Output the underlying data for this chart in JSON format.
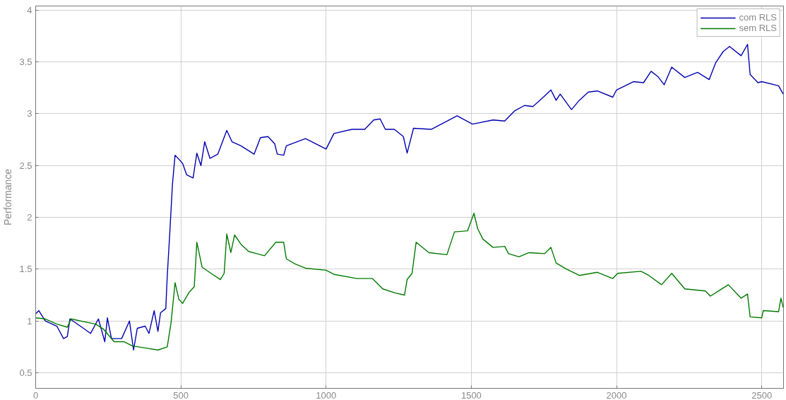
{
  "chart_data": {
    "type": "line",
    "ylabel": "Performance",
    "xlim": [
      0,
      2575
    ],
    "ylim": [
      0.35,
      4.04
    ],
    "xticks": [
      0,
      500,
      1000,
      1500,
      2000,
      2500
    ],
    "yticks": [
      0.5,
      1,
      1.5,
      2,
      2.5,
      3,
      3.5,
      4
    ],
    "grid": true,
    "legend": "top right",
    "marker": "none",
    "line_style": "solid",
    "series": [
      {
        "name": "com RLS",
        "color": "#0000b0",
        "x": [
          0,
          11,
          33,
          73,
          96,
          109,
          118,
          154,
          189,
          216,
          238,
          247,
          261,
          296,
          323,
          337,
          350,
          377,
          390,
          408,
          421,
          430,
          448,
          453,
          462,
          471,
          480,
          497,
          506,
          520,
          542,
          555,
          569,
          582,
          600,
          627,
          658,
          676,
          707,
          752,
          774,
          800,
          823,
          832,
          854,
          863,
          929,
          1000,
          1027,
          1089,
          1133,
          1164,
          1186,
          1204,
          1235,
          1266,
          1279,
          1301,
          1363,
          1451,
          1504,
          1575,
          1615,
          1650,
          1683,
          1712,
          1748,
          1774,
          1792,
          1806,
          1845,
          1872,
          1903,
          1934,
          1987,
          2000,
          2058,
          2093,
          2119,
          2142,
          2164,
          2190,
          2235,
          2279,
          2319,
          2341,
          2367,
          2389,
          2429,
          2451,
          2460,
          2487,
          2500,
          2558,
          2574
        ],
        "values": [
          1.07,
          1.1,
          1.0,
          0.95,
          0.83,
          0.85,
          1.02,
          0.95,
          0.88,
          1.02,
          0.8,
          1.03,
          0.83,
          0.83,
          1.0,
          0.72,
          0.93,
          0.95,
          0.88,
          1.1,
          0.9,
          1.08,
          1.12,
          1.43,
          1.86,
          2.32,
          2.6,
          2.55,
          2.52,
          2.41,
          2.38,
          2.62,
          2.5,
          2.73,
          2.57,
          2.61,
          2.84,
          2.73,
          2.69,
          2.61,
          2.77,
          2.78,
          2.71,
          2.61,
          2.6,
          2.69,
          2.76,
          2.66,
          2.81,
          2.85,
          2.85,
          2.94,
          2.95,
          2.85,
          2.85,
          2.78,
          2.62,
          2.86,
          2.85,
          2.98,
          2.9,
          2.94,
          2.93,
          3.03,
          3.08,
          3.07,
          3.16,
          3.23,
          3.13,
          3.19,
          3.04,
          3.13,
          3.21,
          3.22,
          3.16,
          3.23,
          3.31,
          3.3,
          3.41,
          3.36,
          3.28,
          3.45,
          3.35,
          3.4,
          3.33,
          3.49,
          3.6,
          3.65,
          3.56,
          3.67,
          3.38,
          3.3,
          3.31,
          3.27,
          3.19
        ]
      },
      {
        "name": "sem RLS",
        "color": "#007a00",
        "x": [
          0,
          33,
          73,
          109,
          122,
          171,
          207,
          234,
          270,
          305,
          332,
          377,
          421,
          453,
          466,
          480,
          493,
          506,
          529,
          546,
          555,
          573,
          609,
          636,
          649,
          658,
          672,
          685,
          707,
          734,
          761,
          788,
          827,
          854,
          863,
          894,
          929,
          1000,
          1027,
          1106,
          1159,
          1195,
          1239,
          1270,
          1279,
          1296,
          1310,
          1354,
          1416,
          1442,
          1487,
          1509,
          1522,
          1540,
          1575,
          1615,
          1628,
          1664,
          1699,
          1752,
          1774,
          1792,
          1828,
          1872,
          1934,
          1987,
          2004,
          2084,
          2111,
          2155,
          2190,
          2235,
          2306,
          2323,
          2385,
          2429,
          2451,
          2460,
          2500,
          2505,
          2558,
          2566,
          2574
        ],
        "values": [
          1.03,
          1.02,
          0.97,
          0.94,
          1.02,
          0.99,
          0.97,
          0.92,
          0.8,
          0.8,
          0.76,
          0.74,
          0.72,
          0.75,
          0.98,
          1.37,
          1.21,
          1.17,
          1.28,
          1.33,
          1.76,
          1.52,
          1.45,
          1.4,
          1.46,
          1.84,
          1.66,
          1.83,
          1.74,
          1.67,
          1.65,
          1.63,
          1.76,
          1.76,
          1.6,
          1.55,
          1.51,
          1.49,
          1.45,
          1.41,
          1.41,
          1.31,
          1.27,
          1.25,
          1.4,
          1.46,
          1.76,
          1.66,
          1.64,
          1.86,
          1.87,
          2.04,
          1.89,
          1.79,
          1.71,
          1.72,
          1.65,
          1.62,
          1.66,
          1.65,
          1.71,
          1.56,
          1.5,
          1.44,
          1.47,
          1.41,
          1.46,
          1.48,
          1.44,
          1.35,
          1.46,
          1.31,
          1.29,
          1.24,
          1.35,
          1.22,
          1.26,
          1.04,
          1.03,
          1.1,
          1.09,
          1.22,
          1.13
        ]
      }
    ]
  }
}
